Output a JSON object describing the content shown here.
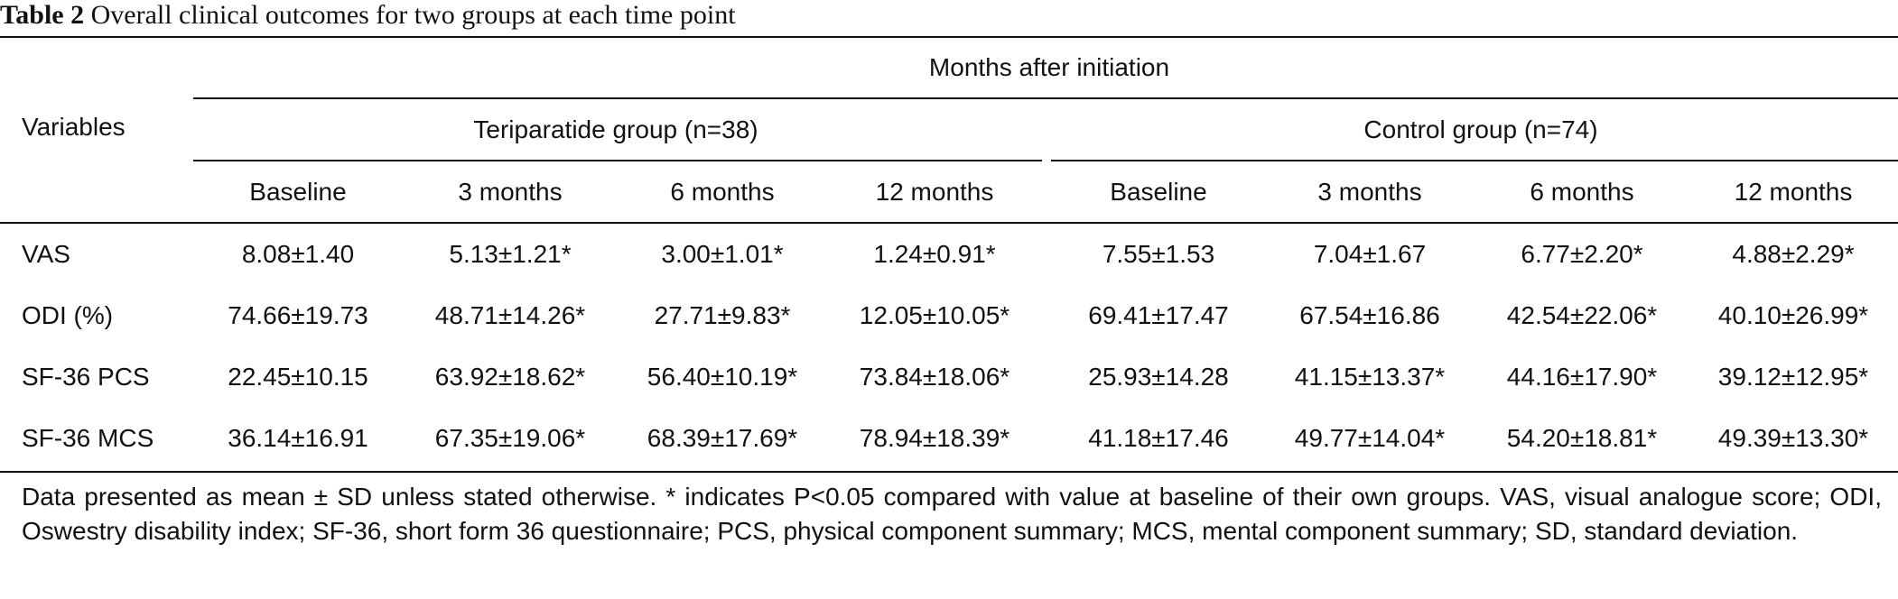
{
  "caption": {
    "label": "Table 2",
    "text": "Overall clinical outcomes for two groups at each time point"
  },
  "header": {
    "variables": "Variables",
    "months_after": "Months after initiation",
    "groups": [
      {
        "name": "Teriparatide group (n=38)"
      },
      {
        "name": "Control group (n=74)"
      }
    ],
    "timepoints": [
      "Baseline",
      "3 months",
      "6 months",
      "12 months",
      "Baseline",
      "3 months",
      "6 months",
      "12 months"
    ]
  },
  "rows": [
    {
      "label": "VAS",
      "cells": [
        "8.08±1.40",
        "5.13±1.21*",
        "3.00±1.01*",
        "1.24±0.91*",
        "7.55±1.53",
        "7.04±1.67",
        "6.77±2.20*",
        "4.88±2.29*"
      ]
    },
    {
      "label": "ODI (%)",
      "cells": [
        "74.66±19.73",
        "48.71±14.26*",
        "27.71±9.83*",
        "12.05±10.05*",
        "69.41±17.47",
        "67.54±16.86",
        "42.54±22.06*",
        "40.10±26.99*"
      ]
    },
    {
      "label": "SF-36 PCS",
      "cells": [
        "22.45±10.15",
        "63.92±18.62*",
        "56.40±10.19*",
        "73.84±18.06*",
        "25.93±14.28",
        "41.15±13.37*",
        "44.16±17.90*",
        "39.12±12.95*"
      ]
    },
    {
      "label": "SF-36 MCS",
      "cells": [
        "36.14±16.91",
        "67.35±19.06*",
        "68.39±17.69*",
        "78.94±18.39*",
        "41.18±17.46",
        "49.77±14.04*",
        "54.20±18.81*",
        "49.39±13.30*"
      ]
    }
  ],
  "footnote": "Data presented as mean ± SD unless stated otherwise. * indicates P<0.05 compared with value at baseline of their own groups. VAS, visual analogue score; ODI, Oswestry disability index; SF-36, short form 36 questionnaire; PCS, physical component summary; MCS, mental component summary; SD, standard deviation."
}
